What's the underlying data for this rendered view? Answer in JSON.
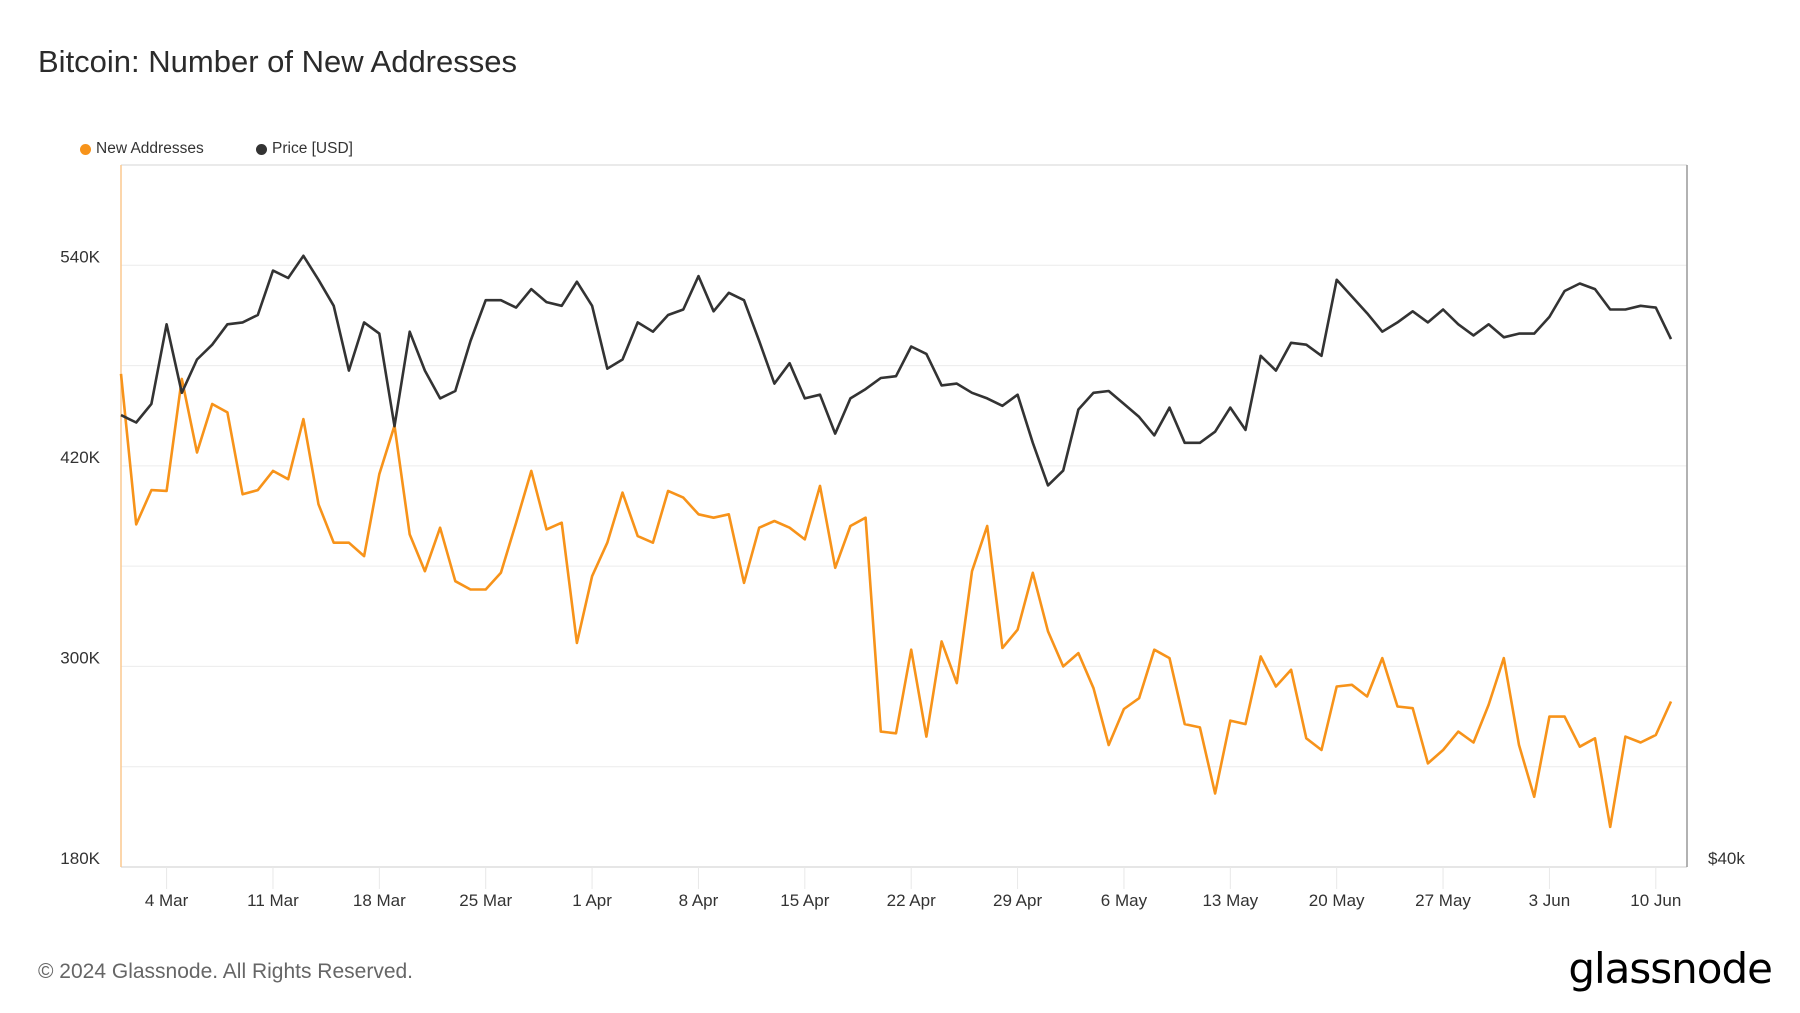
{
  "title": "Bitcoin: Number of New Addresses",
  "footer": {
    "copyright": "© 2024 Glassnode. All Rights Reserved.",
    "logo": "glassnode"
  },
  "colors": {
    "new_addresses": "#f7931a",
    "price": "#333333",
    "grid": "#ececec"
  },
  "chart_data": {
    "type": "line",
    "title": "Bitcoin: Number of New Addresses",
    "x_start": "2024-03-01",
    "x_end": "2024-06-11",
    "x_tick_labels": [
      "4 Mar",
      "11 Mar",
      "18 Mar",
      "25 Mar",
      "1 Apr",
      "8 Apr",
      "15 Apr",
      "22 Apr",
      "29 Apr",
      "6 May",
      "13 May",
      "20 May",
      "27 May",
      "3 Jun",
      "10 Jun"
    ],
    "x_tick_start_index": 3,
    "x_tick_step_days": 7,
    "y_left": {
      "label": "New Addresses",
      "ticks": [
        "540K",
        "420K",
        "300K",
        "180K"
      ],
      "tick_values": [
        540000,
        420000,
        300000,
        180000
      ],
      "range": [
        180000,
        600000
      ],
      "grid_values": [
        240000,
        300000,
        360000,
        420000,
        480000,
        540000
      ]
    },
    "y_right": {
      "label": "Price [USD]",
      "ticks": [
        "$40k"
      ],
      "tick_values": [
        40000
      ],
      "range": [
        40000,
        77900
      ]
    },
    "legend": {
      "placement": "top-left",
      "entries": [
        "New Addresses",
        "Price [USD]"
      ]
    },
    "series": [
      {
        "name": "New Addresses",
        "axis": "left",
        "values": [
          475000,
          385000,
          405500,
          405000,
          472000,
          428000,
          457000,
          452000,
          403000,
          405500,
          417000,
          412000,
          448000,
          397000,
          374000,
          374000,
          366000,
          415000,
          444000,
          379000,
          357000,
          383000,
          351000,
          346000,
          346000,
          356000,
          386000,
          417000,
          382000,
          386000,
          314000,
          354000,
          374000,
          404000,
          378000,
          374000,
          405000,
          401000,
          391000,
          389000,
          391000,
          350000,
          383000,
          387000,
          383000,
          376000,
          408000,
          359000,
          384000,
          389000,
          261000,
          260000,
          310000,
          258000,
          315000,
          290000,
          357000,
          384000,
          311000,
          322000,
          356000,
          321000,
          300000,
          308000,
          287000,
          253000,
          274500,
          281000,
          310000,
          305000,
          265500,
          263500,
          224000,
          267600,
          265500,
          306000,
          288000,
          298000,
          257000,
          250000,
          288000,
          289000,
          282000,
          305000,
          276000,
          275000,
          242000,
          250000,
          261000,
          254500,
          277000,
          305000,
          253000,
          222000,
          270000,
          270000,
          252000,
          257000,
          204000,
          258000,
          254500,
          259000,
          279000
        ]
      },
      {
        "name": "Price [USD]",
        "axis": "right",
        "values": [
          64400,
          64000,
          65000,
          69300,
          65600,
          67400,
          68200,
          69300,
          69400,
          69800,
          72200,
          71800,
          73000,
          71700,
          70300,
          66800,
          69400,
          68800,
          63800,
          68900,
          66800,
          65300,
          65700,
          68400,
          70600,
          70600,
          70200,
          71200,
          70500,
          70300,
          71600,
          70300,
          66900,
          67400,
          69400,
          68900,
          69800,
          70100,
          71900,
          70000,
          71000,
          70600,
          68400,
          66100,
          67200,
          65300,
          65500,
          63400,
          65300,
          65800,
          66400,
          66500,
          68100,
          67700,
          66000,
          66100,
          65600,
          65300,
          64900,
          65500,
          62900,
          60600,
          61400,
          64700,
          65600,
          65700,
          65000,
          64300,
          63300,
          64800,
          62900,
          62900,
          63500,
          64800,
          63600,
          67600,
          66800,
          68300,
          68200,
          67600,
          71700,
          70800,
          69900,
          68900,
          69400,
          70000,
          69400,
          70100,
          69300,
          68700,
          69300,
          68600,
          68800,
          68800,
          69700,
          71100,
          71500,
          71200,
          70100,
          70100,
          70300,
          70200,
          68500
        ]
      }
    ]
  }
}
